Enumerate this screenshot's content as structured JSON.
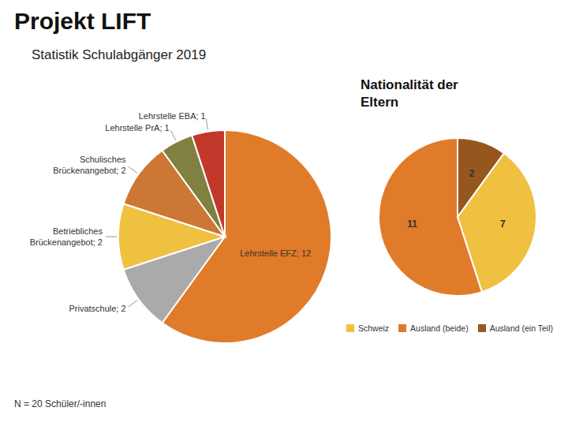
{
  "chart_data": [
    {
      "type": "pie",
      "title": "Projekt LIFT",
      "subtitle": "Statistik Schulabgänger 2019",
      "annotations": [
        "N = 20 Schüler/-innen"
      ],
      "categories": [
        "Lehrstelle EFZ; 12",
        "Privatschule; 2",
        "Betriebliches\nBrückenangebot; 2",
        "Schulisches\nBrückenangebot; 2",
        "Lehrstelle PrA; 1",
        "Lehrstelle EBA; 1"
      ],
      "values": [
        12,
        2,
        2,
        2,
        1,
        1
      ],
      "colors": [
        "#E07B2A",
        "#AAAAAA",
        "#F0C040",
        "#CC7733",
        "#808040",
        "#C0392B"
      ]
    },
    {
      "type": "pie",
      "title": "Nationalität der\nEltern",
      "categories": [
        "Schweiz",
        "Ausland (beide)",
        "Ausland (ein Teil)"
      ],
      "values": [
        7,
        11,
        2
      ],
      "colors": [
        "#F0C040",
        "#E07B2A",
        "#96571E"
      ],
      "data_labels": true,
      "legend": "bottom"
    }
  ]
}
